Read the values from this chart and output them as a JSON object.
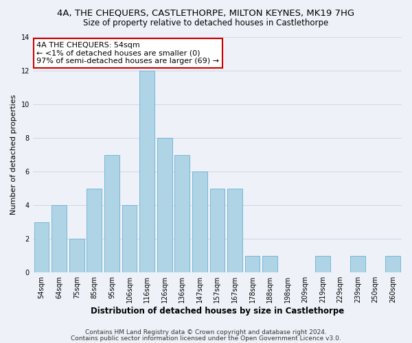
{
  "title1": "4A, THE CHEQUERS, CASTLETHORPE, MILTON KEYNES, MK19 7HG",
  "title2": "Size of property relative to detached houses in Castlethorpe",
  "xlabel": "Distribution of detached houses by size in Castlethorpe",
  "ylabel": "Number of detached properties",
  "bin_labels": [
    "54sqm",
    "64sqm",
    "75sqm",
    "85sqm",
    "95sqm",
    "106sqm",
    "116sqm",
    "126sqm",
    "136sqm",
    "147sqm",
    "157sqm",
    "167sqm",
    "178sqm",
    "188sqm",
    "198sqm",
    "209sqm",
    "219sqm",
    "229sqm",
    "239sqm",
    "250sqm",
    "260sqm"
  ],
  "counts": [
    3,
    4,
    2,
    5,
    7,
    4,
    12,
    8,
    7,
    6,
    5,
    5,
    1,
    1,
    0,
    0,
    1,
    0,
    1,
    0,
    1
  ],
  "bar_color": "#aed4e6",
  "bar_edge_color": "#6bafd4",
  "annotation_box_text": "4A THE CHEQUERS: 54sqm\n← <1% of detached houses are smaller (0)\n97% of semi-detached houses are larger (69) →",
  "ylim": [
    0,
    14
  ],
  "yticks": [
    0,
    2,
    4,
    6,
    8,
    10,
    12,
    14
  ],
  "background_color": "#eef2f8",
  "footer1": "Contains HM Land Registry data © Crown copyright and database right 2024.",
  "footer2": "Contains public sector information licensed under the Open Government Licence v3.0.",
  "grid_color": "#d0d8e8",
  "annotation_box_color": "#ffffff",
  "annotation_box_edge_color": "#cc0000",
  "title1_fontsize": 9.5,
  "title2_fontsize": 8.5,
  "xlabel_fontsize": 8.5,
  "ylabel_fontsize": 8,
  "tick_fontsize": 7,
  "annotation_fontsize": 8,
  "footer_fontsize": 6.5
}
